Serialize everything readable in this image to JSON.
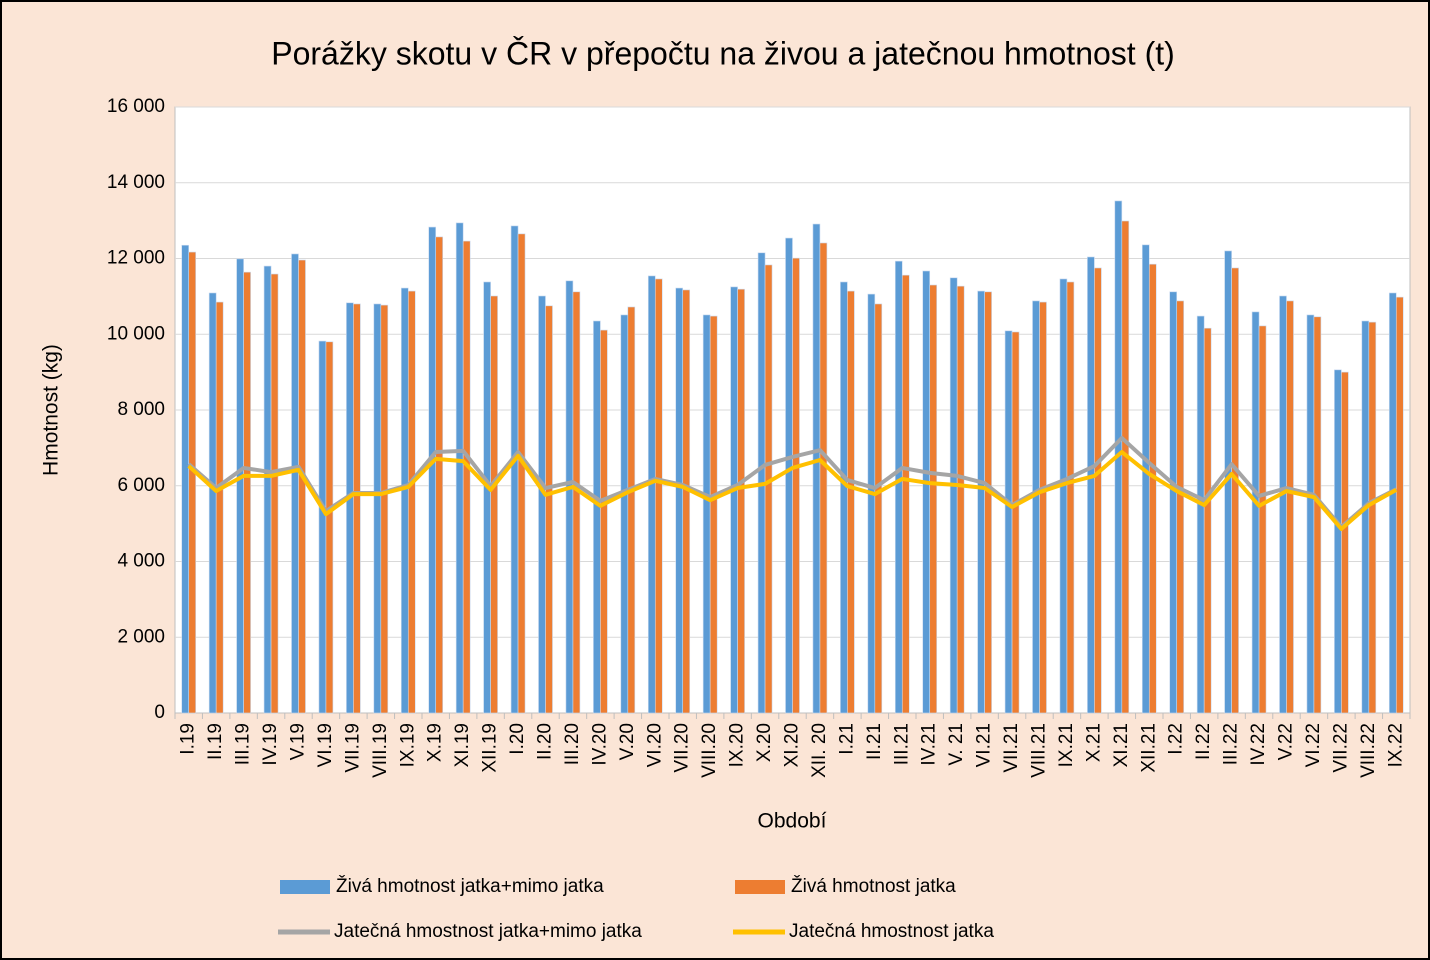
{
  "chart_data": {
    "type": "bar_line",
    "title": "Porážky skotu v ČR v přepočtu na živou a jatečnou hmotnost (t)",
    "x_label": "Období",
    "y_label": "Hmotnost (kg)",
    "categories": [
      "I.19",
      "II.19",
      "III.19",
      "IV.19",
      "V.19",
      "VI.19",
      "VII.19",
      "VIII.19",
      "IX.19",
      "X.19",
      "XI.19",
      "XII.19",
      "I.20",
      "II.20",
      "III.20",
      "IV.20",
      "V.20",
      "VI.20",
      "VII.20",
      "VIII.20",
      "IX.20",
      "X.20",
      "XI.20",
      "XII. 20",
      "I.21",
      "II.21",
      "III.21",
      "IV.21",
      "V. 21",
      "VI.21",
      "VII.21",
      "VIII.21",
      "IX.21",
      "X.21",
      "XI.21",
      "XII.21",
      "I.22",
      "II.22",
      "III.22",
      "IV.22",
      "V.22",
      "VI.22",
      "VII.22",
      "VIII.22",
      "IX.22"
    ],
    "series": [
      {
        "name": "Živá hmotnost jatka+mimo jatka",
        "kind": "bar",
        "color": "#5b9bd5",
        "values": [
          12350,
          11090,
          11990,
          11800,
          12120,
          9820,
          10830,
          10800,
          11220,
          12830,
          12940,
          11380,
          12860,
          11010,
          11410,
          10350,
          10510,
          11540,
          11220,
          10510,
          11250,
          12150,
          12540,
          12910,
          11380,
          11060,
          11930,
          11670,
          11490,
          11140,
          10090,
          10880,
          11460,
          12040,
          13520,
          12360,
          11120,
          10480,
          12200,
          10590,
          11010,
          10510,
          9060,
          10350,
          11090
        ]
      },
      {
        "name": "Živá hmotnost jatka",
        "kind": "bar",
        "color": "#ed7d31",
        "values": [
          12170,
          10850,
          11640,
          11590,
          11960,
          9800,
          10800,
          10770,
          11140,
          12570,
          12460,
          11010,
          12650,
          10750,
          11120,
          10110,
          10720,
          11460,
          11170,
          10480,
          11190,
          11830,
          12010,
          12410,
          11140,
          10800,
          11560,
          11300,
          11270,
          11120,
          10060,
          10850,
          11380,
          11750,
          12990,
          11850,
          10880,
          10160,
          11750,
          10220,
          10880,
          10460,
          9000,
          10320,
          10980
        ]
      },
      {
        "name": "Jatečná hmostnost jatka+mimo jatka",
        "kind": "line",
        "color": "#a5a5a5",
        "values": [
          6570,
          5940,
          6470,
          6360,
          6500,
          5330,
          5810,
          5810,
          6020,
          6890,
          6920,
          5990,
          6890,
          5940,
          6100,
          5600,
          5890,
          6180,
          6020,
          5700,
          6020,
          6550,
          6760,
          6940,
          6150,
          5940,
          6470,
          6340,
          6260,
          6070,
          5490,
          5890,
          6180,
          6520,
          7260,
          6600,
          5970,
          5620,
          6570,
          5730,
          5940,
          5760,
          4910,
          5540,
          5910
        ]
      },
      {
        "name": "Jatečná hmostnost jatka",
        "kind": "line",
        "color": "#ffc000",
        "values": [
          6520,
          5860,
          6260,
          6260,
          6420,
          5250,
          5780,
          5780,
          5970,
          6710,
          6650,
          5890,
          6790,
          5760,
          5970,
          5470,
          5830,
          6130,
          5970,
          5620,
          5940,
          6050,
          6470,
          6680,
          5990,
          5780,
          6180,
          6070,
          6020,
          5940,
          5440,
          5830,
          6070,
          6260,
          6890,
          6310,
          5860,
          5490,
          6310,
          5470,
          5860,
          5700,
          4860,
          5490,
          5890
        ]
      }
    ],
    "ylim": [
      0,
      16000
    ],
    "yticks": [
      0,
      {
        "value": 2000,
        "label": "2 000"
      },
      {
        "value": 4000,
        "label": "4 000"
      },
      {
        "value": 6000,
        "label": "6 000"
      },
      {
        "value": 8000,
        "label": "8 000"
      },
      {
        "value": 10000,
        "label": "10 000"
      },
      {
        "value": 12000,
        "label": "12 000"
      },
      {
        "value": 14000,
        "label": "14 000"
      },
      {
        "value": 16000,
        "label": "16 000"
      }
    ],
    "grid": true,
    "legend": "bottom"
  }
}
